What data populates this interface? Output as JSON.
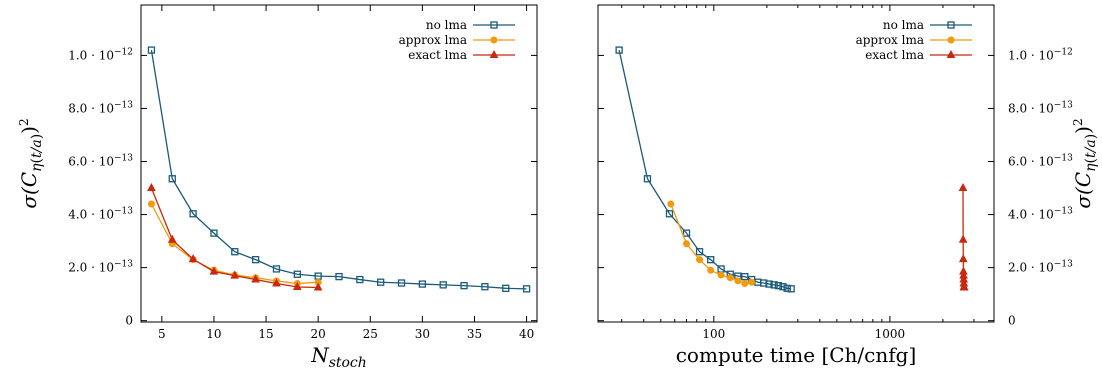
{
  "chart_data": [
    {
      "type": "line",
      "xlabel": {
        "main": "N",
        "sub": "stoch"
      },
      "ylabel": "σ(C_η(t/a))²",
      "xscale": "linear",
      "xlim": [
        3,
        41
      ],
      "ylim": [
        -5e-15,
        1.19e-12
      ],
      "xticks": [
        5,
        10,
        15,
        20,
        25,
        30,
        35,
        40
      ],
      "yticks": [
        0,
        2e-13,
        4e-13,
        6e-13,
        8e-13,
        1e-12
      ],
      "ytick_labels": [
        "0",
        "2.0 · 10⁻¹³",
        "4.0 · 10⁻¹³",
        "6.0 · 10⁻¹³",
        "8.0 · 10⁻¹³",
        "1.0 · 10⁻¹²"
      ],
      "legend": "top-right",
      "grid": false,
      "series": [
        {
          "name": "no lma",
          "color": "#1a5a7a",
          "marker": "square",
          "points": [
            [
              4,
              1.02e-12
            ],
            [
              6,
              5.35e-13
            ],
            [
              8,
              4.03e-13
            ],
            [
              10,
              3.3e-13
            ],
            [
              12,
              2.6e-13
            ],
            [
              14,
              2.3e-13
            ],
            [
              16,
              1.95e-13
            ],
            [
              18,
              1.75e-13
            ],
            [
              20,
              1.68e-13
            ],
            [
              22,
              1.66e-13
            ],
            [
              24,
              1.55e-13
            ],
            [
              26,
              1.45e-13
            ],
            [
              28,
              1.42e-13
            ],
            [
              30,
              1.38e-13
            ],
            [
              32,
              1.35e-13
            ],
            [
              34,
              1.32e-13
            ],
            [
              36,
              1.28e-13
            ],
            [
              38,
              1.22e-13
            ],
            [
              40,
              1.2e-13
            ]
          ]
        },
        {
          "name": "approx lma",
          "color": "#f29a0c",
          "marker": "circle",
          "points": [
            [
              4,
              4.4e-13
            ],
            [
              6,
              2.9e-13
            ],
            [
              8,
              2.3e-13
            ],
            [
              10,
              1.9e-13
            ],
            [
              12,
              1.72e-13
            ],
            [
              14,
              1.62e-13
            ],
            [
              16,
              1.5e-13
            ],
            [
              18,
              1.4e-13
            ],
            [
              20,
              1.45e-13
            ]
          ]
        },
        {
          "name": "exact lma",
          "color": "#c8280c",
          "marker": "triangle",
          "points": [
            [
              4,
              5e-13
            ],
            [
              6,
              3.05e-13
            ],
            [
              8,
              2.32e-13
            ],
            [
              10,
              1.85e-13
            ],
            [
              12,
              1.7e-13
            ],
            [
              14,
              1.55e-13
            ],
            [
              16,
              1.4e-13
            ],
            [
              18,
              1.27e-13
            ],
            [
              20,
              1.25e-13
            ]
          ]
        }
      ]
    },
    {
      "type": "line",
      "xlabel": {
        "main": "compute time [Ch/cnfg]",
        "sub": ""
      },
      "ylabel": "σ(C_η(t/a))²",
      "xscale": "log",
      "xlim": [
        22,
        3900
      ],
      "ylim": [
        -5e-15,
        1.19e-12
      ],
      "xticks": [
        100,
        1000
      ],
      "xtick_labels": [
        "100",
        "1000"
      ],
      "yticks": [
        0,
        2e-13,
        4e-13,
        6e-13,
        8e-13,
        1e-12
      ],
      "ytick_labels": [
        "0",
        "2.0 · 10⁻¹³",
        "4.0 · 10⁻¹³",
        "6.0 · 10⁻¹³",
        "8.0 · 10⁻¹³",
        "1.0 · 10⁻¹²"
      ],
      "legend": "top-right",
      "grid": false,
      "series": [
        {
          "name": "no lma",
          "color": "#1a5a7a",
          "marker": "square",
          "points": [
            [
              29,
              1.02e-12
            ],
            [
              42,
              5.35e-13
            ],
            [
              56,
              4.03e-13
            ],
            [
              70,
              3.3e-13
            ],
            [
              83,
              2.6e-13
            ],
            [
              96,
              2.3e-13
            ],
            [
              110,
              1.95e-13
            ],
            [
              124,
              1.75e-13
            ],
            [
              137,
              1.68e-13
            ],
            [
              150,
              1.66e-13
            ],
            [
              164,
              1.55e-13
            ],
            [
              178,
              1.45e-13
            ],
            [
              192,
              1.42e-13
            ],
            [
              206,
              1.38e-13
            ],
            [
              220,
              1.35e-13
            ],
            [
              233,
              1.32e-13
            ],
            [
              247,
              1.28e-13
            ],
            [
              261,
              1.22e-13
            ],
            [
              275,
              1.2e-13
            ]
          ]
        },
        {
          "name": "approx lma",
          "color": "#f29a0c",
          "marker": "circle",
          "points": [
            [
              57,
              4.4e-13
            ],
            [
              70,
              2.9e-13
            ],
            [
              83,
              2.3e-13
            ],
            [
              96,
              1.9e-13
            ],
            [
              110,
              1.72e-13
            ],
            [
              124,
              1.62e-13
            ],
            [
              137,
              1.5e-13
            ],
            [
              150,
              1.4e-13
            ],
            [
              164,
              1.45e-13
            ]
          ]
        },
        {
          "name": "exact lma",
          "color": "#c8280c",
          "marker": "triangle",
          "points": [
            [
              2600,
              5e-13
            ],
            [
              2605,
              3.05e-13
            ],
            [
              2610,
              2.32e-13
            ],
            [
              2615,
              1.85e-13
            ],
            [
              2620,
              1.7e-13
            ],
            [
              2625,
              1.55e-13
            ],
            [
              2630,
              1.4e-13
            ],
            [
              2635,
              1.27e-13
            ],
            [
              2640,
              1.25e-13
            ]
          ]
        }
      ]
    }
  ]
}
